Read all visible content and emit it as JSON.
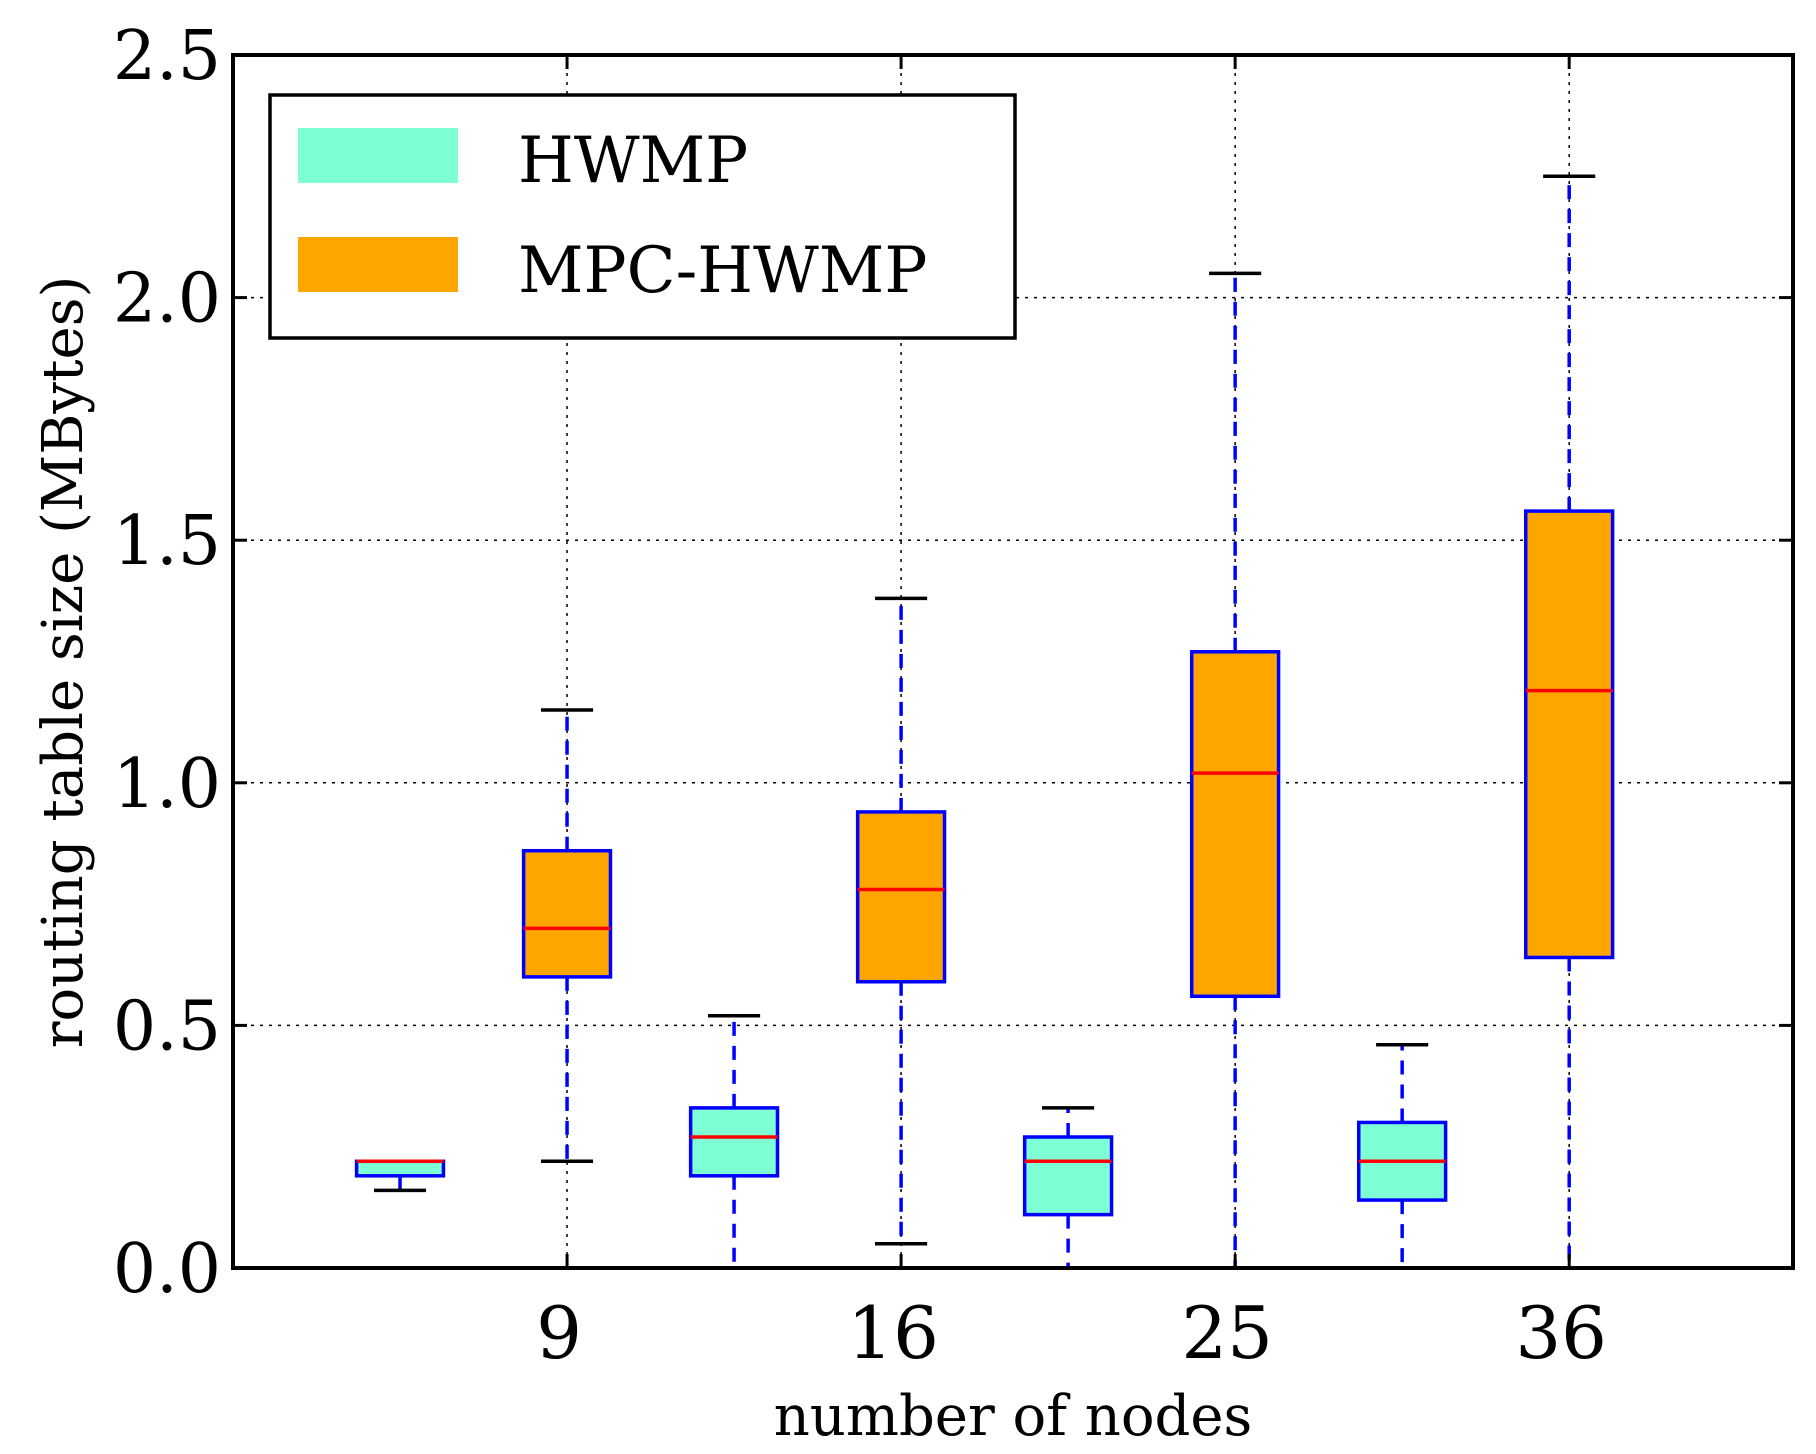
{
  "chart_data": {
    "type": "boxplot",
    "title": "",
    "xlabel": "number of nodes",
    "ylabel": "routing table size (MBytes)",
    "ylim": [
      0,
      2.5
    ],
    "yticks": [
      "0.0",
      "0.5",
      "1.0",
      "1.5",
      "2.0",
      "2.5"
    ],
    "ytick_values": [
      0,
      0.5,
      1.0,
      1.5,
      2.0,
      2.5
    ],
    "categories": [
      "9",
      "16",
      "25",
      "36"
    ],
    "grid": true,
    "legend_position": "top-left",
    "series": [
      {
        "name": "HWMP",
        "color": "#7fffd4",
        "boxes": [
          {
            "whisker_low": 0.16,
            "q1": 0.19,
            "median": 0.22,
            "q3": 0.22,
            "whisker_high": 0.22
          },
          {
            "whisker_low": 0.0,
            "q1": 0.19,
            "median": 0.27,
            "q3": 0.33,
            "whisker_high": 0.52
          },
          {
            "whisker_low": 0.0,
            "q1": 0.11,
            "median": 0.22,
            "q3": 0.27,
            "whisker_high": 0.33
          },
          {
            "whisker_low": 0.0,
            "q1": 0.14,
            "median": 0.22,
            "q3": 0.3,
            "whisker_high": 0.46
          }
        ]
      },
      {
        "name": "MPC-HWMP",
        "color": "#ffa500",
        "boxes": [
          {
            "whisker_low": 0.22,
            "q1": 0.6,
            "median": 0.7,
            "q3": 0.86,
            "whisker_high": 1.15
          },
          {
            "whisker_low": 0.05,
            "q1": 0.59,
            "median": 0.78,
            "q3": 0.94,
            "whisker_high": 1.38
          },
          {
            "whisker_low": 0.0,
            "q1": 0.56,
            "median": 1.02,
            "q3": 1.27,
            "whisker_high": 2.05
          },
          {
            "whisker_low": 0.0,
            "q1": 0.64,
            "median": 1.19,
            "q3": 1.56,
            "whisker_high": 2.25
          }
        ]
      }
    ],
    "colors": {
      "box_edge": "#0000ff",
      "median": "#ff0000",
      "whisker": "#0000ff",
      "cap": "#000000",
      "grid": "#000000"
    }
  }
}
